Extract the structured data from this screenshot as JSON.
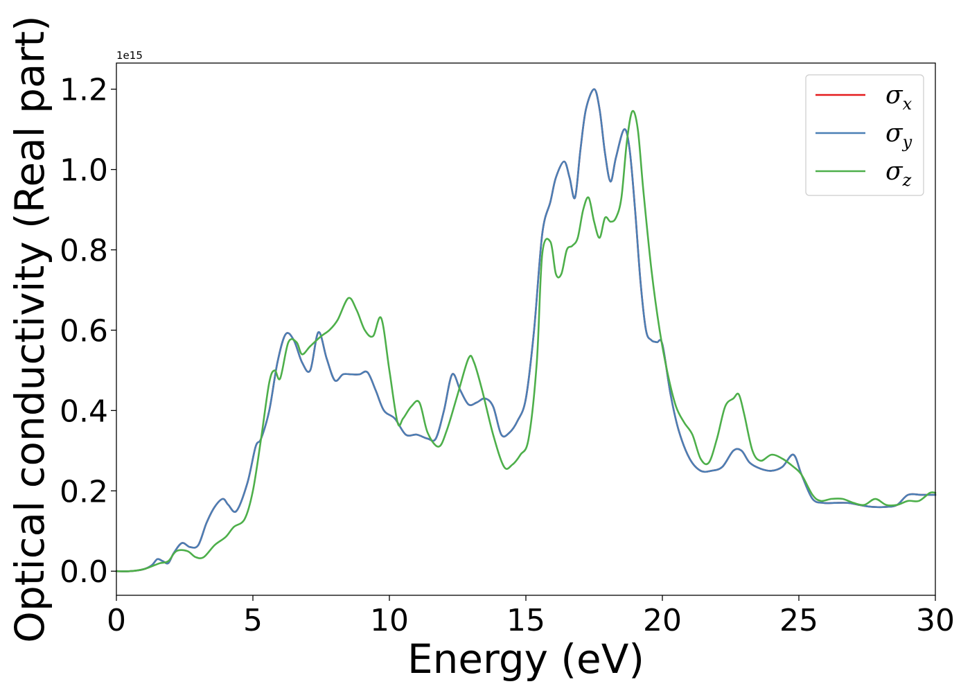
{
  "chart_data": {
    "type": "line",
    "xlabel": "Energy (eV)",
    "ylabel": "Optical conductivity (Real part)",
    "y_offset_label": "1e15",
    "xlim": [
      0,
      30
    ],
    "ylim": [
      -0.06,
      1.265
    ],
    "x_ticks": [
      "0",
      "5",
      "10",
      "15",
      "20",
      "25",
      "30"
    ],
    "y_ticks": [
      "0.0",
      "0.2",
      "0.4",
      "0.6",
      "0.8",
      "1.0",
      "1.2"
    ],
    "grid": false,
    "legend_position": "top-right",
    "series": [
      {
        "name": "σx",
        "symbol": "σ",
        "subscript": "x",
        "color": "#e41a1c",
        "x": [
          0,
          0.5,
          1.0,
          1.3,
          1.5,
          1.7,
          1.9,
          2.1,
          2.4,
          2.7,
          3.0,
          3.3,
          3.6,
          3.9,
          4.1,
          4.4,
          4.8,
          5.1,
          5.3,
          5.6,
          5.9,
          6.2,
          6.5,
          6.8,
          7.1,
          7.4,
          7.7,
          8.0,
          8.3,
          8.6,
          8.9,
          9.2,
          9.5,
          9.8,
          10.2,
          10.6,
          11.0,
          11.4,
          11.7,
          12.0,
          12.3,
          12.6,
          12.9,
          13.2,
          13.5,
          13.8,
          14.1,
          14.4,
          14.7,
          15.0,
          15.3,
          15.6,
          15.9,
          16.1,
          16.4,
          16.6,
          16.8,
          17.0,
          17.2,
          17.5,
          17.7,
          17.9,
          18.1,
          18.3,
          18.6,
          18.8,
          19.0,
          19.2,
          19.4,
          19.6,
          19.8,
          20.0,
          20.3,
          20.6,
          21.0,
          21.4,
          21.8,
          22.2,
          22.6,
          22.9,
          23.2,
          23.6,
          24.0,
          24.4,
          24.8,
          25.1,
          25.5,
          25.9,
          26.3,
          26.8,
          27.2,
          27.7,
          28.2,
          28.6,
          29.0,
          29.5,
          30.0
        ],
        "values": [
          0.0,
          0.0,
          0.005,
          0.015,
          0.03,
          0.025,
          0.02,
          0.045,
          0.07,
          0.06,
          0.065,
          0.12,
          0.16,
          0.18,
          0.165,
          0.15,
          0.22,
          0.31,
          0.33,
          0.4,
          0.52,
          0.59,
          0.575,
          0.52,
          0.5,
          0.595,
          0.53,
          0.475,
          0.49,
          0.49,
          0.49,
          0.495,
          0.45,
          0.4,
          0.38,
          0.34,
          0.34,
          0.33,
          0.33,
          0.4,
          0.49,
          0.45,
          0.415,
          0.42,
          0.43,
          0.41,
          0.34,
          0.345,
          0.375,
          0.43,
          0.6,
          0.84,
          0.92,
          0.98,
          1.02,
          0.98,
          0.93,
          1.05,
          1.15,
          1.2,
          1.15,
          1.04,
          0.97,
          1.03,
          1.1,
          1.05,
          0.9,
          0.72,
          0.6,
          0.575,
          0.57,
          0.565,
          0.44,
          0.35,
          0.28,
          0.25,
          0.25,
          0.26,
          0.3,
          0.3,
          0.27,
          0.255,
          0.25,
          0.26,
          0.29,
          0.24,
          0.18,
          0.17,
          0.17,
          0.17,
          0.165,
          0.16,
          0.16,
          0.165,
          0.19,
          0.19,
          0.19
        ]
      },
      {
        "name": "σy",
        "symbol": "σ",
        "subscript": "y",
        "color": "#4a7fb5",
        "x": [
          0,
          0.5,
          1.0,
          1.3,
          1.5,
          1.7,
          1.9,
          2.1,
          2.4,
          2.7,
          3.0,
          3.3,
          3.6,
          3.9,
          4.1,
          4.4,
          4.8,
          5.1,
          5.3,
          5.6,
          5.9,
          6.2,
          6.5,
          6.8,
          7.1,
          7.4,
          7.7,
          8.0,
          8.3,
          8.6,
          8.9,
          9.2,
          9.5,
          9.8,
          10.2,
          10.6,
          11.0,
          11.4,
          11.7,
          12.0,
          12.3,
          12.6,
          12.9,
          13.2,
          13.5,
          13.8,
          14.1,
          14.4,
          14.7,
          15.0,
          15.3,
          15.6,
          15.9,
          16.1,
          16.4,
          16.6,
          16.8,
          17.0,
          17.2,
          17.5,
          17.7,
          17.9,
          18.1,
          18.3,
          18.6,
          18.8,
          19.0,
          19.2,
          19.4,
          19.6,
          19.8,
          20.0,
          20.3,
          20.6,
          21.0,
          21.4,
          21.8,
          22.2,
          22.6,
          22.9,
          23.2,
          23.6,
          24.0,
          24.4,
          24.8,
          25.1,
          25.5,
          25.9,
          26.3,
          26.8,
          27.2,
          27.7,
          28.2,
          28.6,
          29.0,
          29.5,
          30.0
        ],
        "values": [
          0.0,
          0.0,
          0.005,
          0.015,
          0.03,
          0.025,
          0.02,
          0.045,
          0.07,
          0.06,
          0.065,
          0.12,
          0.16,
          0.18,
          0.165,
          0.15,
          0.22,
          0.31,
          0.33,
          0.4,
          0.52,
          0.59,
          0.575,
          0.52,
          0.5,
          0.595,
          0.53,
          0.475,
          0.49,
          0.49,
          0.49,
          0.495,
          0.45,
          0.4,
          0.38,
          0.34,
          0.34,
          0.33,
          0.33,
          0.4,
          0.49,
          0.45,
          0.415,
          0.42,
          0.43,
          0.41,
          0.34,
          0.345,
          0.375,
          0.43,
          0.6,
          0.84,
          0.92,
          0.98,
          1.02,
          0.98,
          0.93,
          1.05,
          1.15,
          1.2,
          1.15,
          1.04,
          0.97,
          1.03,
          1.1,
          1.05,
          0.9,
          0.72,
          0.6,
          0.575,
          0.57,
          0.565,
          0.44,
          0.35,
          0.28,
          0.25,
          0.25,
          0.26,
          0.3,
          0.3,
          0.27,
          0.255,
          0.25,
          0.26,
          0.29,
          0.24,
          0.18,
          0.17,
          0.17,
          0.17,
          0.165,
          0.16,
          0.16,
          0.165,
          0.19,
          0.19,
          0.19
        ]
      },
      {
        "name": "σz",
        "symbol": "σ",
        "subscript": "z",
        "color": "#4daf4a",
        "x": [
          0,
          0.5,
          1.0,
          1.4,
          1.6,
          1.9,
          2.2,
          2.6,
          2.9,
          3.2,
          3.6,
          4.0,
          4.3,
          4.7,
          5.0,
          5.3,
          5.6,
          5.8,
          6.0,
          6.3,
          6.6,
          6.8,
          7.1,
          7.5,
          7.8,
          8.1,
          8.5,
          8.8,
          9.1,
          9.4,
          9.7,
          10.0,
          10.3,
          10.5,
          10.8,
          11.1,
          11.4,
          11.8,
          12.1,
          12.5,
          12.9,
          13.1,
          13.4,
          13.8,
          14.2,
          14.5,
          14.8,
          15.1,
          15.4,
          15.6,
          15.9,
          16.1,
          16.3,
          16.5,
          16.7,
          16.9,
          17.1,
          17.3,
          17.5,
          17.7,
          17.9,
          18.1,
          18.3,
          18.5,
          18.7,
          18.9,
          19.1,
          19.3,
          19.6,
          19.9,
          20.2,
          20.5,
          20.8,
          21.1,
          21.4,
          21.7,
          22.0,
          22.3,
          22.6,
          22.8,
          23.0,
          23.3,
          23.6,
          24.0,
          24.4,
          24.8,
          25.1,
          25.5,
          25.8,
          26.2,
          26.6,
          27.0,
          27.4,
          27.8,
          28.2,
          28.6,
          29.0,
          29.4,
          29.8,
          30.0
        ],
        "values": [
          0.0,
          0.0,
          0.005,
          0.015,
          0.02,
          0.025,
          0.05,
          0.05,
          0.035,
          0.035,
          0.065,
          0.085,
          0.11,
          0.13,
          0.2,
          0.33,
          0.47,
          0.5,
          0.48,
          0.57,
          0.57,
          0.54,
          0.56,
          0.585,
          0.6,
          0.625,
          0.68,
          0.65,
          0.6,
          0.585,
          0.63,
          0.5,
          0.37,
          0.38,
          0.41,
          0.42,
          0.345,
          0.31,
          0.35,
          0.44,
          0.53,
          0.52,
          0.45,
          0.34,
          0.26,
          0.265,
          0.29,
          0.33,
          0.52,
          0.79,
          0.82,
          0.74,
          0.74,
          0.8,
          0.81,
          0.83,
          0.9,
          0.93,
          0.87,
          0.83,
          0.88,
          0.87,
          0.88,
          0.93,
          1.07,
          1.145,
          1.1,
          0.95,
          0.75,
          0.6,
          0.49,
          0.41,
          0.37,
          0.34,
          0.28,
          0.27,
          0.33,
          0.41,
          0.43,
          0.44,
          0.39,
          0.3,
          0.275,
          0.29,
          0.28,
          0.26,
          0.24,
          0.19,
          0.175,
          0.18,
          0.18,
          0.17,
          0.165,
          0.18,
          0.165,
          0.165,
          0.175,
          0.175,
          0.195,
          0.195
        ]
      }
    ]
  }
}
